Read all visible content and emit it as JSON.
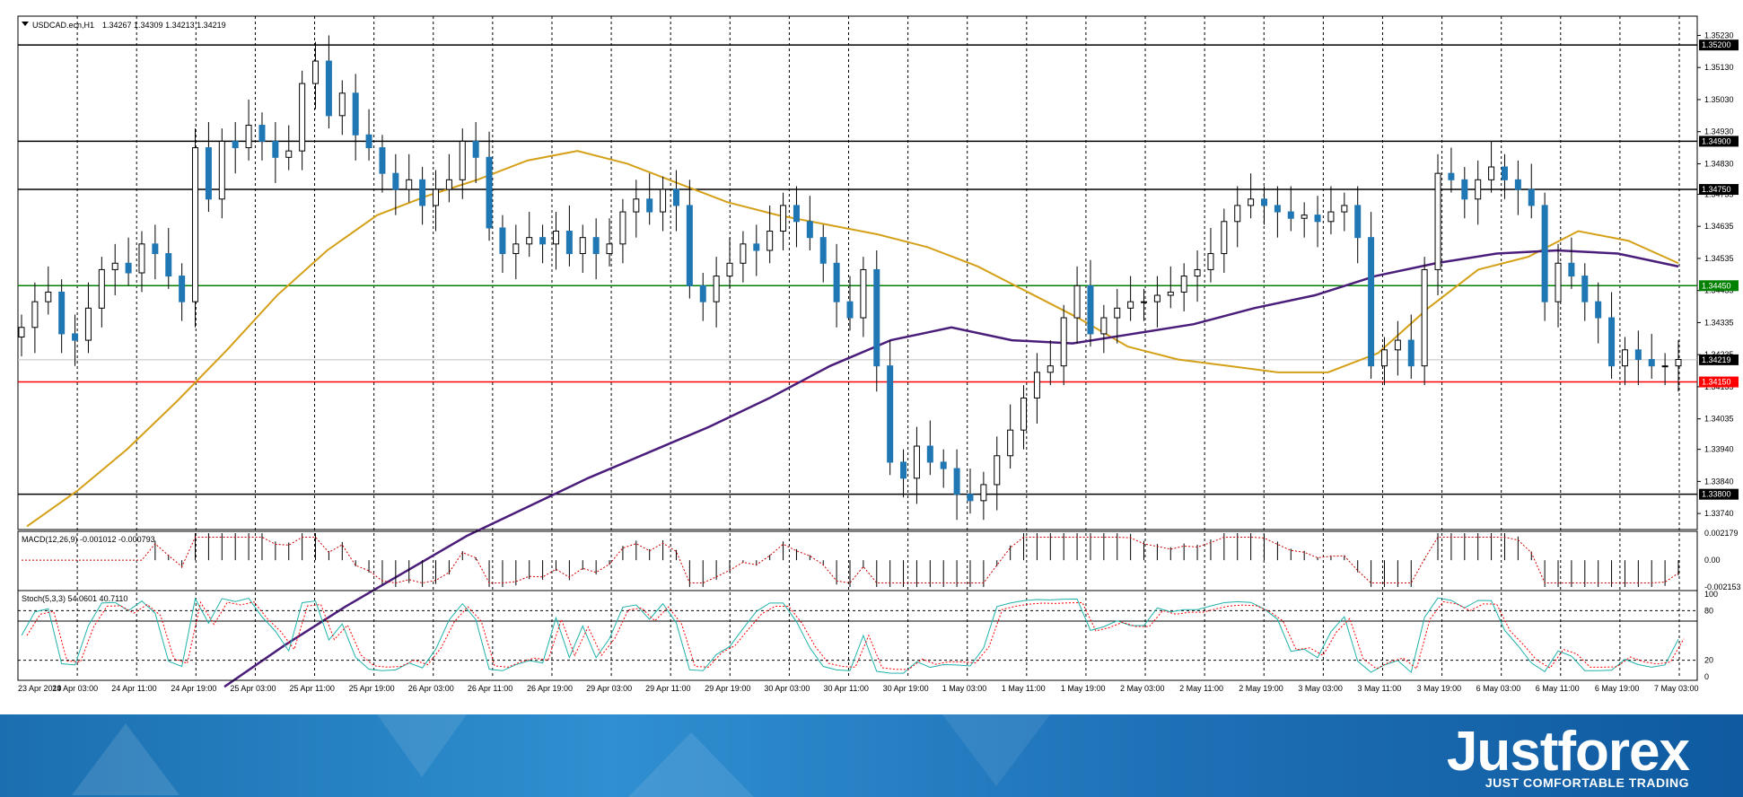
{
  "header": {
    "symbol": "USDCAD.ecn,H1",
    "ohlc": "1.34267 1.34309 1.34213 1.34219",
    "macd_label": "MACD(12,26,9) -0.001012 -0.000793",
    "stoch_label": "Stoch(5,3,3) 54.0601 40.7110"
  },
  "colors": {
    "bull": "#ffffff",
    "bear": "#1f77b4",
    "ma_fast": "#d4a017",
    "ma_slow": "#4b1d7a",
    "support_red": "#ff0000",
    "level_green": "#00aa00",
    "stoch_main": "#20b2aa",
    "stoch_signal": "#ff0000"
  },
  "chart_data": {
    "type": "candlestick",
    "price_axis": {
      "ylim": [
        1.3369,
        1.3529
      ],
      "ticks": [
        "1.35230",
        "1.35130",
        "1.35030",
        "1.34930",
        "1.34830",
        "1.34735",
        "1.34635",
        "1.34535",
        "1.34435",
        "1.34335",
        "1.34235",
        "1.34135",
        "1.34035",
        "1.33940",
        "1.33840",
        "1.33740"
      ]
    },
    "levels": [
      {
        "label": "1.35200",
        "value": 1.352,
        "color": "#000000"
      },
      {
        "label": "1.34900",
        "value": 1.349,
        "color": "#000000"
      },
      {
        "label": "1.34750",
        "value": 1.3475,
        "color": "#000000"
      },
      {
        "label": "1.34450",
        "value": 1.3445,
        "color": "#008000"
      },
      {
        "label": "1.34150",
        "value": 1.3415,
        "color": "#ff0000"
      },
      {
        "label": "1.33800",
        "value": 1.338,
        "color": "#000000"
      }
    ],
    "current_price": {
      "label": "1.34219",
      "value": 1.34219
    },
    "x_labels": [
      "23 Apr 2019",
      "24 Apr 03:00",
      "24 Apr 11:00",
      "24 Apr 19:00",
      "25 Apr 03:00",
      "25 Apr 11:00",
      "25 Apr 19:00",
      "26 Apr 03:00",
      "26 Apr 11:00",
      "26 Apr 19:00",
      "29 Apr 03:00",
      "29 Apr 11:00",
      "29 Apr 19:00",
      "30 Apr 03:00",
      "30 Apr 11:00",
      "30 Apr 19:00",
      "1 May 03:00",
      "1 May 11:00",
      "1 May 19:00",
      "2 May 03:00",
      "2 May 11:00",
      "2 May 19:00",
      "3 May 03:00",
      "3 May 11:00",
      "3 May 19:00",
      "6 May 03:00",
      "6 May 11:00",
      "6 May 19:00",
      "7 May 03:00"
    ],
    "closes": [
      1.3432,
      1.344,
      1.3443,
      1.343,
      1.3428,
      1.3438,
      1.345,
      1.3452,
      1.3449,
      1.3458,
      1.3455,
      1.3448,
      1.344,
      1.3488,
      1.3472,
      1.349,
      1.3488,
      1.3495,
      1.349,
      1.3485,
      1.3487,
      1.3508,
      1.3515,
      1.3498,
      1.3505,
      1.3492,
      1.3488,
      1.348,
      1.3475,
      1.3478,
      1.347,
      1.3475,
      1.3478,
      1.349,
      1.3485,
      1.3463,
      1.3455,
      1.3458,
      1.346,
      1.3458,
      1.3462,
      1.3455,
      1.346,
      1.3455,
      1.3458,
      1.3468,
      1.3472,
      1.3468,
      1.3475,
      1.347,
      1.3445,
      1.344,
      1.3448,
      1.3452,
      1.3458,
      1.3456,
      1.3462,
      1.347,
      1.3465,
      1.346,
      1.3452,
      1.344,
      1.3435,
      1.345,
      1.342,
      1.339,
      1.3385,
      1.3395,
      1.339,
      1.3388,
      1.338,
      1.3378,
      1.3383,
      1.3392,
      1.34,
      1.341,
      1.3418,
      1.342,
      1.3435,
      1.3445,
      1.343,
      1.3435,
      1.3438,
      1.344,
      1.344,
      1.3442,
      1.3443,
      1.3448,
      1.345,
      1.3455,
      1.3465,
      1.347,
      1.3472,
      1.347,
      1.3468,
      1.3466,
      1.3467,
      1.3465,
      1.3468,
      1.347,
      1.346,
      1.342,
      1.3425,
      1.3428,
      1.342,
      1.345,
      1.348,
      1.3478,
      1.3472,
      1.3478,
      1.3482,
      1.3478,
      1.3475,
      1.347,
      1.344,
      1.3452,
      1.3448,
      1.344,
      1.3435,
      1.342,
      1.3425,
      1.3422,
      1.342,
      1.342,
      1.3422
    ],
    "ma_fast": [
      1.337,
      1.3381,
      1.3394,
      1.3409,
      1.3425,
      1.3442,
      1.3456,
      1.3467,
      1.3473,
      1.3478,
      1.3484,
      1.3487,
      1.3483,
      1.3477,
      1.3471,
      1.3467,
      1.3464,
      1.3461,
      1.3457,
      1.3451,
      1.3443,
      1.3435,
      1.3426,
      1.3422,
      1.342,
      1.3418,
      1.3418,
      1.3424,
      1.3438,
      1.345,
      1.3454,
      1.3462,
      1.3459,
      1.3452
    ],
    "ma_slow": [
      1.332,
      1.3333,
      1.3345,
      1.3356,
      1.3367,
      1.3376,
      1.3385,
      1.3393,
      1.3401,
      1.341,
      1.342,
      1.3428,
      1.3432,
      1.3428,
      1.3427,
      1.343,
      1.3433,
      1.3438,
      1.3442,
      1.3448,
      1.3452,
      1.3455,
      1.3456,
      1.3455,
      1.3451
    ],
    "macd": {
      "ylim": [
        -0.002153,
        0.002179
      ],
      "ticks": [
        "0.002179",
        "0.00",
        "-0.002153"
      ]
    },
    "stoch": {
      "ylim": [
        0,
        100
      ],
      "ticks": [
        "100",
        "80",
        "20",
        "0"
      ]
    }
  }
}
